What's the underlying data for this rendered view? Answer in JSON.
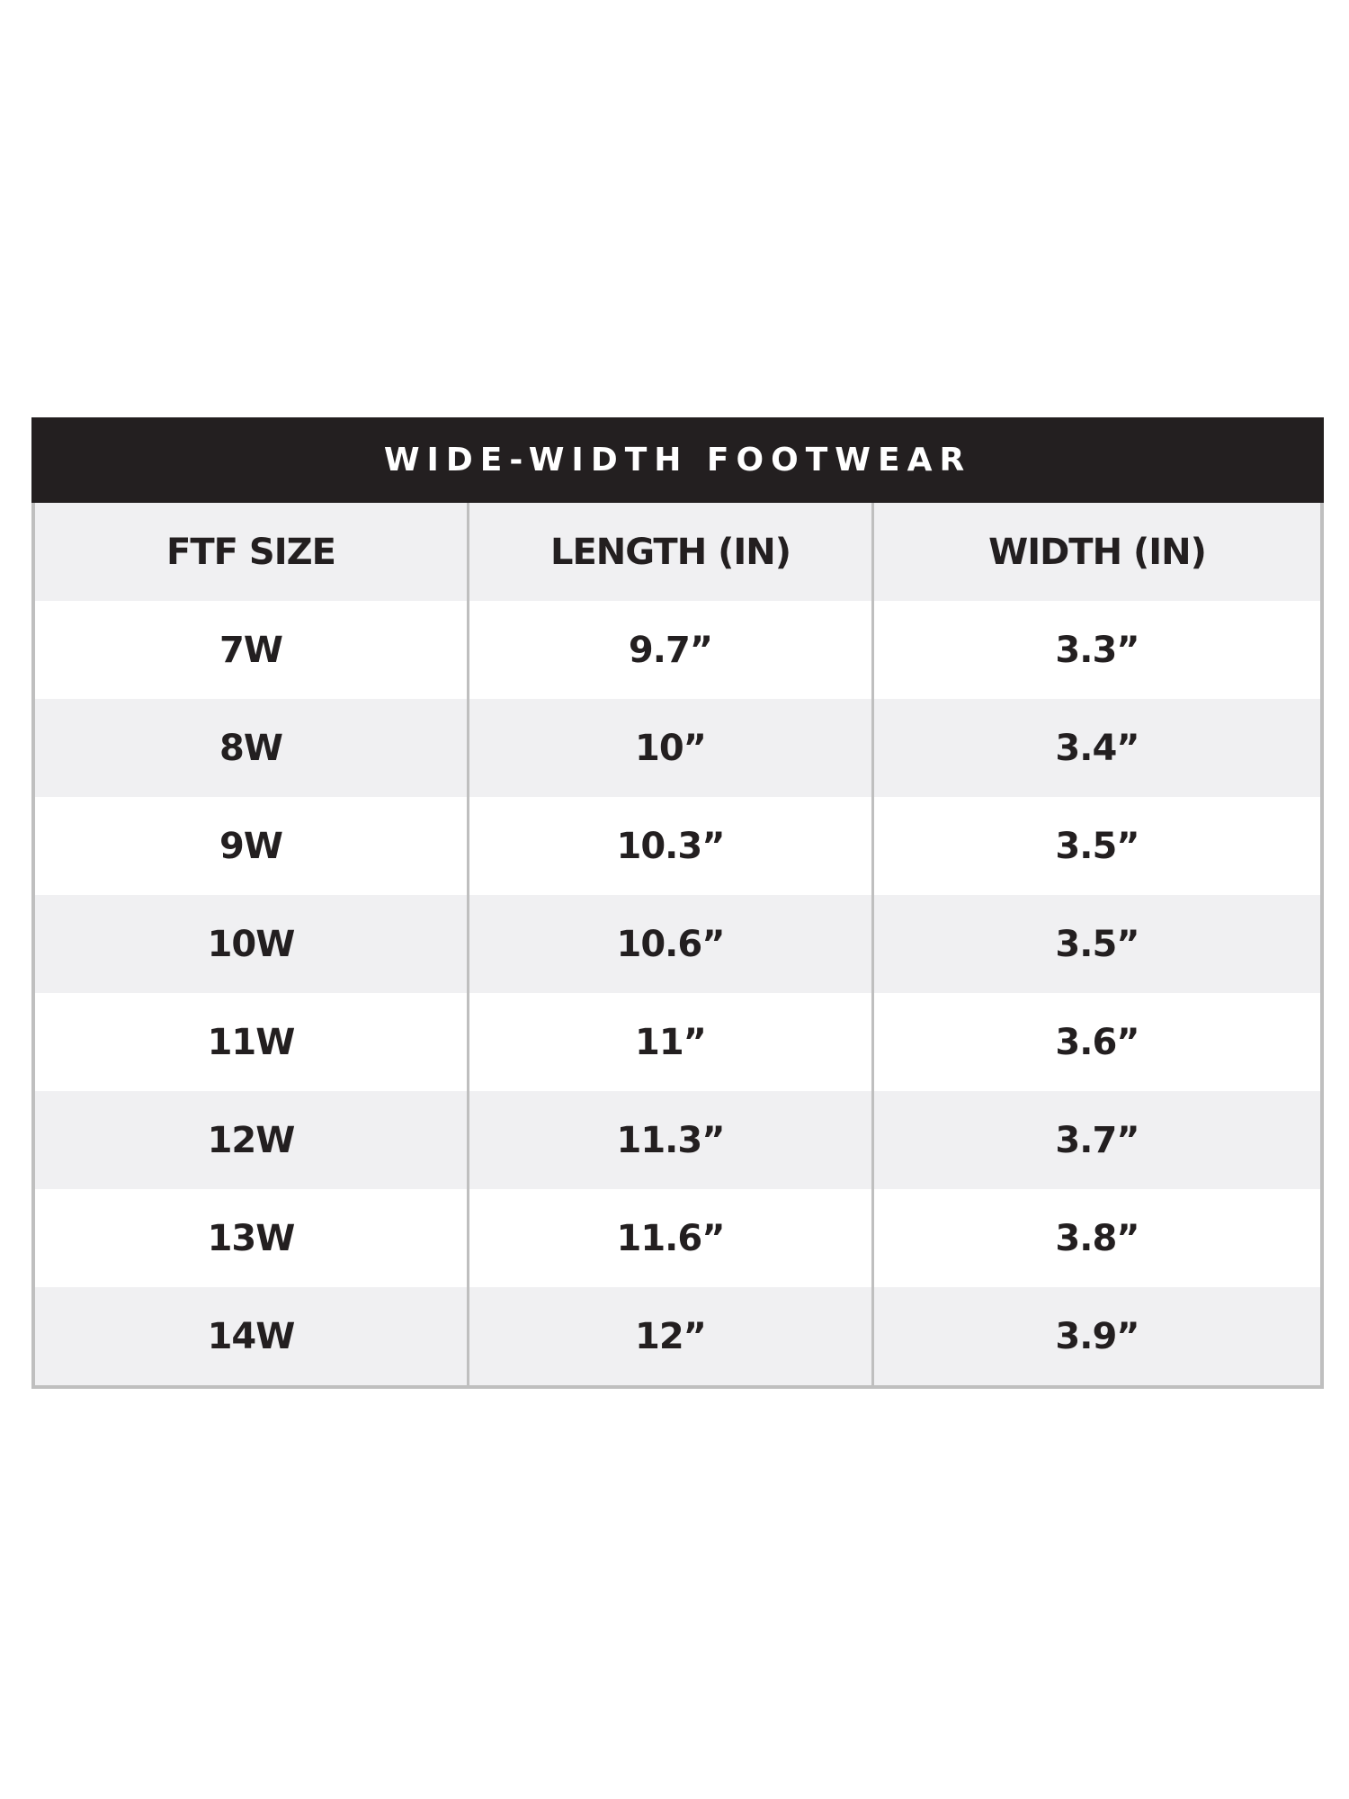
{
  "table": {
    "title": "WIDE-WIDTH FOOTWEAR",
    "headers": [
      "FTF SIZE",
      "LENGTH (IN)",
      "WIDTH (IN)"
    ],
    "rows": [
      [
        "7W",
        "9.7”",
        "3.3”"
      ],
      [
        "8W",
        "10”",
        "3.4”"
      ],
      [
        "9W",
        "10.3”",
        "3.5”"
      ],
      [
        "10W",
        "10.6”",
        "3.5”"
      ],
      [
        "11W",
        "11”",
        "3.6”"
      ],
      [
        "12W",
        "11.3”",
        "3.7”"
      ],
      [
        "13W",
        "11.6”",
        "3.8”"
      ],
      [
        "14W",
        "12”",
        "3.9”"
      ]
    ]
  },
  "colors": {
    "title_bg": "#231f20",
    "stripe": "#f0f0f2",
    "border": "#bfbfbf"
  }
}
